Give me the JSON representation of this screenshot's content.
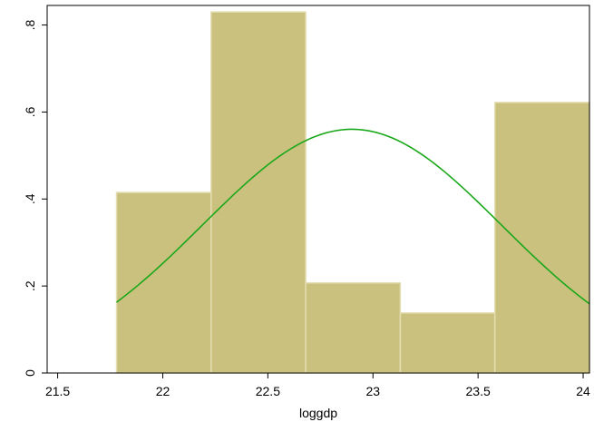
{
  "chart_data": {
    "type": "bar",
    "subtype": "histogram-with-normal-density",
    "xlabel": "loggdp",
    "ylabel": "",
    "xlim": [
      21.45,
      24.03
    ],
    "ylim": [
      0,
      0.845
    ],
    "x_ticks": [
      21.5,
      22,
      22.5,
      23,
      23.5,
      24
    ],
    "x_tick_labels": [
      "21.5",
      "22",
      "22.5",
      "23",
      "23.5",
      "24"
    ],
    "y_ticks": [
      0,
      0.2,
      0.4,
      0.6,
      0.8
    ],
    "y_tick_labels": [
      "0",
      ".2",
      ".4",
      ".6",
      ".8"
    ],
    "bins": [
      {
        "x0": 21.78,
        "x1": 22.23,
        "value": 0.415
      },
      {
        "x0": 22.23,
        "x1": 22.68,
        "value": 0.83
      },
      {
        "x0": 22.68,
        "x1": 23.13,
        "value": 0.207
      },
      {
        "x0": 23.13,
        "x1": 23.58,
        "value": 0.138
      },
      {
        "x0": 23.58,
        "x1": 24.03,
        "value": 0.622
      }
    ],
    "normal_curve": {
      "mean": 22.9,
      "sd": 0.712,
      "x_start": 21.78,
      "x_end": 24.03
    },
    "grid": false,
    "legend": "none",
    "colors": {
      "bar_fill": "#cbc17f",
      "bar_edge": "#e4ddb0",
      "curve": "#1aa81a",
      "frame": "#000000"
    }
  }
}
